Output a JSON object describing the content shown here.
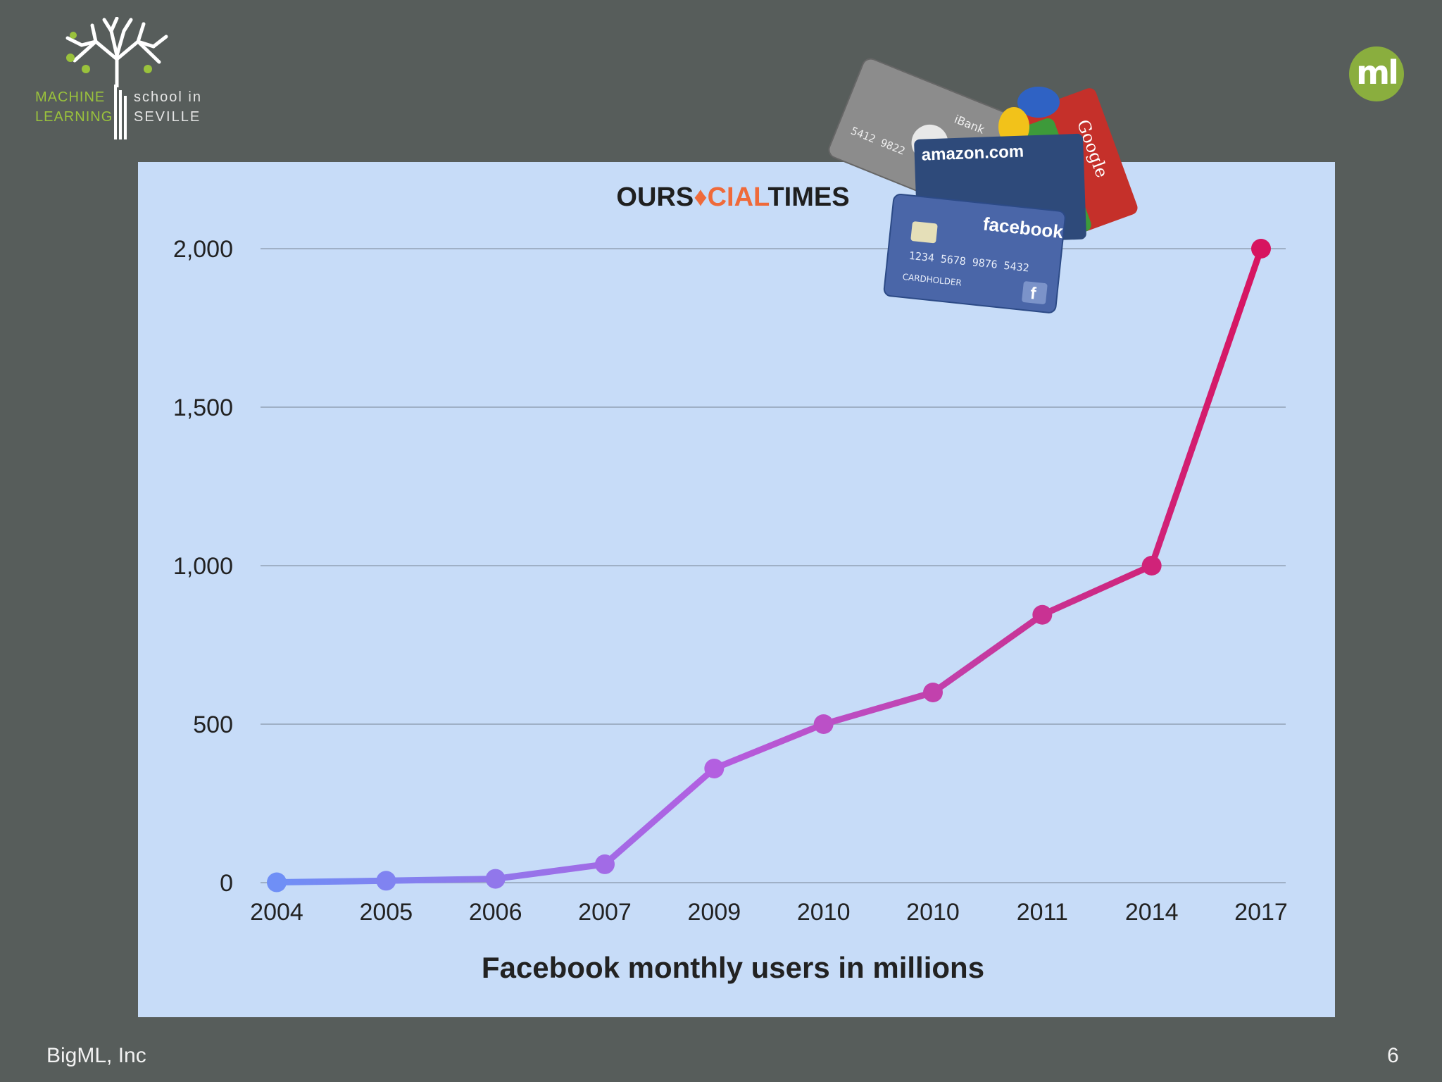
{
  "logo": {
    "left_line1": "MACHINE",
    "left_line2": "LEARNING",
    "right_line1": "school in",
    "right_line2": "SEVILLE",
    "badge": "ml",
    "tree_icon": "tree-icon",
    "colors": {
      "green": "#9ac23c",
      "badge": "#8aae3e"
    }
  },
  "footer": {
    "company": "BigML, Inc",
    "page": "6"
  },
  "brand": {
    "prefix": "OURS",
    "mid": "CIAL",
    "suffix": "TIMES",
    "colors": {
      "dark": "#1f1f1f",
      "accent": "#ef6a3a"
    }
  },
  "cards": {
    "ibank_label": "iBank",
    "ibank_number": "5412 9822",
    "amazon_label": "amazon.com",
    "facebook_label": "facebook",
    "facebook_number": "1234 5678 9876 5432",
    "facebook_holder": "CARDHOLDER",
    "google_label": "Google"
  },
  "chart_data": {
    "type": "line",
    "categories": [
      "2004",
      "2005",
      "2006",
      "2007",
      "2009",
      "2010",
      "2010",
      "2011",
      "2014",
      "2017"
    ],
    "values": [
      1,
      6,
      12,
      58,
      360,
      500,
      600,
      845,
      1000,
      2000
    ],
    "xlabel": "Facebook monthly users in millions",
    "ylabel": "",
    "ylim": [
      0,
      2000
    ],
    "yticks": [
      0,
      500,
      1000,
      1500,
      2000
    ],
    "ytick_labels": [
      "0",
      "500",
      "1,000",
      "1,500",
      "2,000"
    ],
    "grid": true,
    "colors": {
      "start": "#6f8ff6",
      "mid": "#b45ee0",
      "end": "#d7145f"
    }
  }
}
